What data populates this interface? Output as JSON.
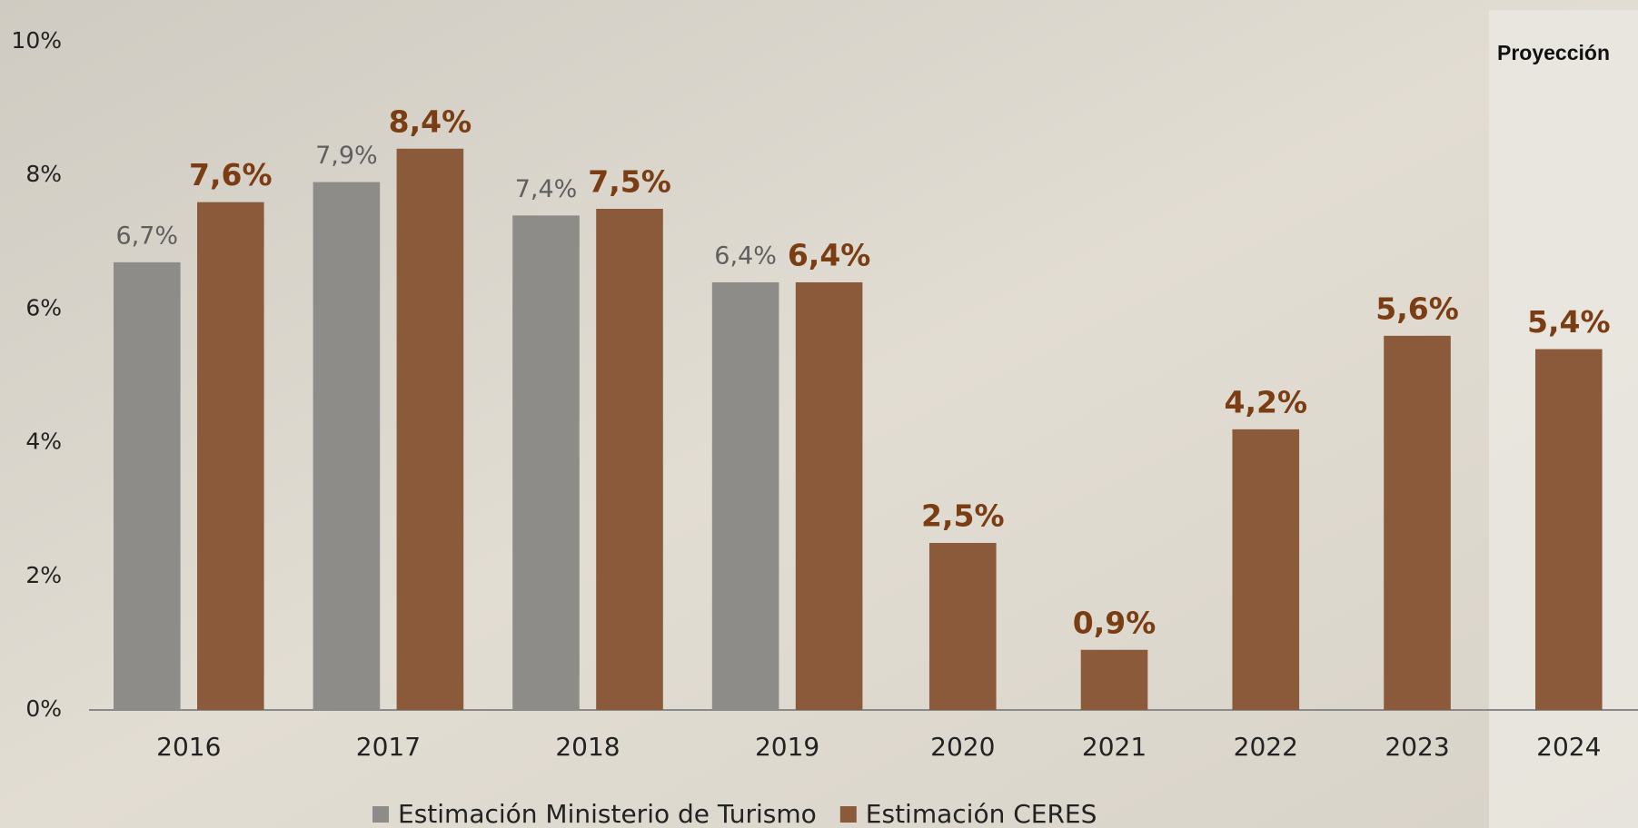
{
  "chart_data": {
    "type": "bar",
    "annotation": "Proyección",
    "categories": [
      "2016",
      "2017",
      "2018",
      "2019",
      "2020",
      "2021",
      "2022",
      "2023",
      "2024"
    ],
    "series": [
      {
        "name": "Estimación Ministerio de Turismo",
        "color": "#8e8c88",
        "values": [
          6.7,
          7.9,
          7.4,
          6.4,
          null,
          null,
          null,
          null,
          null
        ],
        "value_labels": [
          "6,7%",
          "7,9%",
          "7,4%",
          "6,4%",
          null,
          null,
          null,
          null,
          null
        ]
      },
      {
        "name": "Estimación CERES",
        "color": "#8a5a3b",
        "values": [
          7.6,
          8.4,
          7.5,
          6.4,
          2.5,
          0.9,
          4.2,
          5.6,
          5.4
        ],
        "value_labels": [
          "7,6%",
          "8,4%",
          "7,5%",
          "6,4%",
          "2,5%",
          "0,9%",
          "4,2%",
          "5,6%",
          "5,4%"
        ]
      }
    ],
    "ylim": [
      0,
      10
    ],
    "yticks": [
      {
        "value": 0,
        "label": "0%"
      },
      {
        "value": 2,
        "label": "2%"
      },
      {
        "value": 4,
        "label": "4%"
      },
      {
        "value": 6,
        "label": "6%"
      },
      {
        "value": 8,
        "label": "8%"
      },
      {
        "value": 10,
        "label": "10%"
      }
    ],
    "grid": false
  }
}
